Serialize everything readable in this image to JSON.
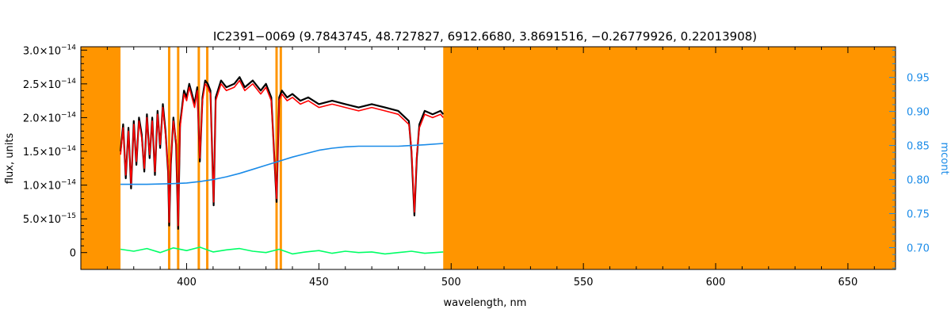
{
  "chart_data": {
    "type": "line",
    "title": "IC2391−0069    (9.7843745, 48.727827, 6912.6680, 3.8691516, −0.26779926, 0.22013908)",
    "xlabel": "wavelength, nm",
    "ylabel": "flux, units",
    "ylabel_right": "mcont",
    "xlim": [
      360,
      668
    ],
    "ylim": [
      -0.25,
      3.05
    ],
    "ylim_right": [
      0.668,
      0.995
    ],
    "x_ticks": [
      400,
      450,
      500,
      550,
      600,
      650
    ],
    "x_tick_labels": [
      "400",
      "450",
      "500",
      "550",
      "600",
      "650"
    ],
    "y_ticks": [
      0,
      0.5,
      1.0,
      1.5,
      2.0,
      2.5,
      3.0
    ],
    "y_tick_labels": [
      "0",
      "5.0×10",
      "1.0×10",
      "1.5×10",
      "2.0×10",
      "2.5×10",
      "3.0×10"
    ],
    "y_tick_exponents": [
      "",
      "−15",
      "−14",
      "−14",
      "−14",
      "−14",
      "−14"
    ],
    "y_right_ticks": [
      0.7,
      0.75,
      0.8,
      0.85,
      0.9,
      0.95
    ],
    "y_right_tick_labels": [
      "0.70",
      "0.75",
      "0.80",
      "0.85",
      "0.90",
      "0.95"
    ],
    "masked_regions": [
      [
        360,
        375
      ],
      [
        497,
        668
      ]
    ],
    "mask_color": "#ff9500",
    "mask_lines": [
      393.4,
      396.8,
      404.6,
      407.8,
      434.0,
      435.6
    ],
    "series": [
      {
        "color": "#000000",
        "axis": "left",
        "x": [
          375,
          376,
          377,
          378,
          379,
          380,
          381,
          382,
          383,
          384,
          385,
          386,
          387,
          388,
          389,
          390,
          391,
          392,
          393,
          393.4,
          394,
          395,
          396,
          396.8,
          397.5,
          399,
          400,
          401,
          402,
          403,
          404,
          405,
          406,
          407,
          408,
          409,
          410.2,
          411,
          413,
          415,
          418,
          420,
          422,
          425,
          428,
          430,
          432,
          434.0,
          435,
          436,
          438,
          440,
          443,
          446,
          450,
          455,
          460,
          465,
          470,
          475,
          480,
          484,
          485,
          486.1,
          487,
          488,
          490,
          493,
          496,
          497
        ],
        "y": [
          1.5,
          1.9,
          1.1,
          1.85,
          0.95,
          1.95,
          1.3,
          2.0,
          1.75,
          1.2,
          2.05,
          1.4,
          2.0,
          1.15,
          2.1,
          1.55,
          2.2,
          1.8,
          1.2,
          0.4,
          1.3,
          2.0,
          1.6,
          0.35,
          1.9,
          2.4,
          2.3,
          2.5,
          2.35,
          2.2,
          2.45,
          1.35,
          2.3,
          2.55,
          2.5,
          2.4,
          0.7,
          2.3,
          2.55,
          2.45,
          2.5,
          2.6,
          2.45,
          2.55,
          2.4,
          2.5,
          2.3,
          0.75,
          2.3,
          2.4,
          2.3,
          2.35,
          2.25,
          2.3,
          2.2,
          2.25,
          2.2,
          2.15,
          2.2,
          2.15,
          2.1,
          1.95,
          1.5,
          0.55,
          1.4,
          1.9,
          2.1,
          2.05,
          2.1,
          2.05
        ]
      },
      {
        "color": "#ff0000",
        "axis": "left",
        "x": [
          375,
          376,
          377,
          378,
          379,
          380,
          381,
          382,
          383,
          384,
          385,
          386,
          387,
          388,
          389,
          390,
          391,
          392,
          393,
          393.4,
          394,
          395,
          396,
          396.8,
          397.5,
          399,
          400,
          401,
          402,
          403,
          404,
          405,
          406,
          407,
          408,
          409,
          410.2,
          411,
          413,
          415,
          418,
          420,
          422,
          425,
          428,
          430,
          432,
          434.0,
          435,
          436,
          438,
          440,
          443,
          446,
          450,
          455,
          460,
          465,
          470,
          475,
          480,
          484,
          485,
          486.1,
          487,
          488,
          490,
          493,
          496,
          497
        ],
        "y": [
          1.45,
          1.85,
          1.15,
          1.8,
          1.0,
          1.9,
          1.35,
          1.95,
          1.7,
          1.25,
          2.0,
          1.45,
          1.95,
          1.2,
          2.05,
          1.6,
          2.15,
          1.75,
          1.25,
          0.45,
          1.35,
          1.95,
          1.65,
          0.4,
          1.85,
          2.35,
          2.25,
          2.45,
          2.3,
          2.15,
          2.4,
          1.4,
          2.25,
          2.5,
          2.45,
          2.35,
          0.75,
          2.25,
          2.5,
          2.4,
          2.45,
          2.55,
          2.4,
          2.5,
          2.35,
          2.45,
          2.25,
          0.8,
          2.25,
          2.35,
          2.25,
          2.3,
          2.2,
          2.25,
          2.15,
          2.2,
          2.15,
          2.1,
          2.15,
          2.1,
          2.05,
          1.9,
          1.55,
          0.6,
          1.45,
          1.85,
          2.05,
          2.0,
          2.05,
          2.0
        ]
      },
      {
        "color": "#1a8be8",
        "axis": "right",
        "x": [
          375,
          385,
          395,
          400,
          405,
          410,
          415,
          420,
          425,
          430,
          435,
          440,
          445,
          450,
          455,
          460,
          465,
          470,
          475,
          480,
          485,
          490,
          497
        ],
        "y": [
          0.793,
          0.793,
          0.794,
          0.795,
          0.797,
          0.8,
          0.804,
          0.809,
          0.815,
          0.821,
          0.827,
          0.833,
          0.838,
          0.843,
          0.846,
          0.848,
          0.849,
          0.849,
          0.849,
          0.849,
          0.85,
          0.851,
          0.853
        ]
      },
      {
        "color": "#00ff66",
        "axis": "left",
        "x": [
          375,
          380,
          385,
          390,
          395,
          400,
          405,
          410,
          415,
          420,
          425,
          430,
          435,
          440,
          445,
          450,
          455,
          460,
          465,
          470,
          475,
          480,
          485,
          490,
          497
        ],
        "y": [
          0.05,
          0.02,
          0.06,
          0.0,
          0.07,
          0.03,
          0.08,
          0.01,
          0.04,
          0.06,
          0.02,
          0.0,
          0.05,
          -0.02,
          0.01,
          0.03,
          -0.01,
          0.02,
          0.0,
          0.01,
          -0.02,
          0.0,
          0.02,
          -0.01,
          0.01
        ]
      }
    ]
  }
}
